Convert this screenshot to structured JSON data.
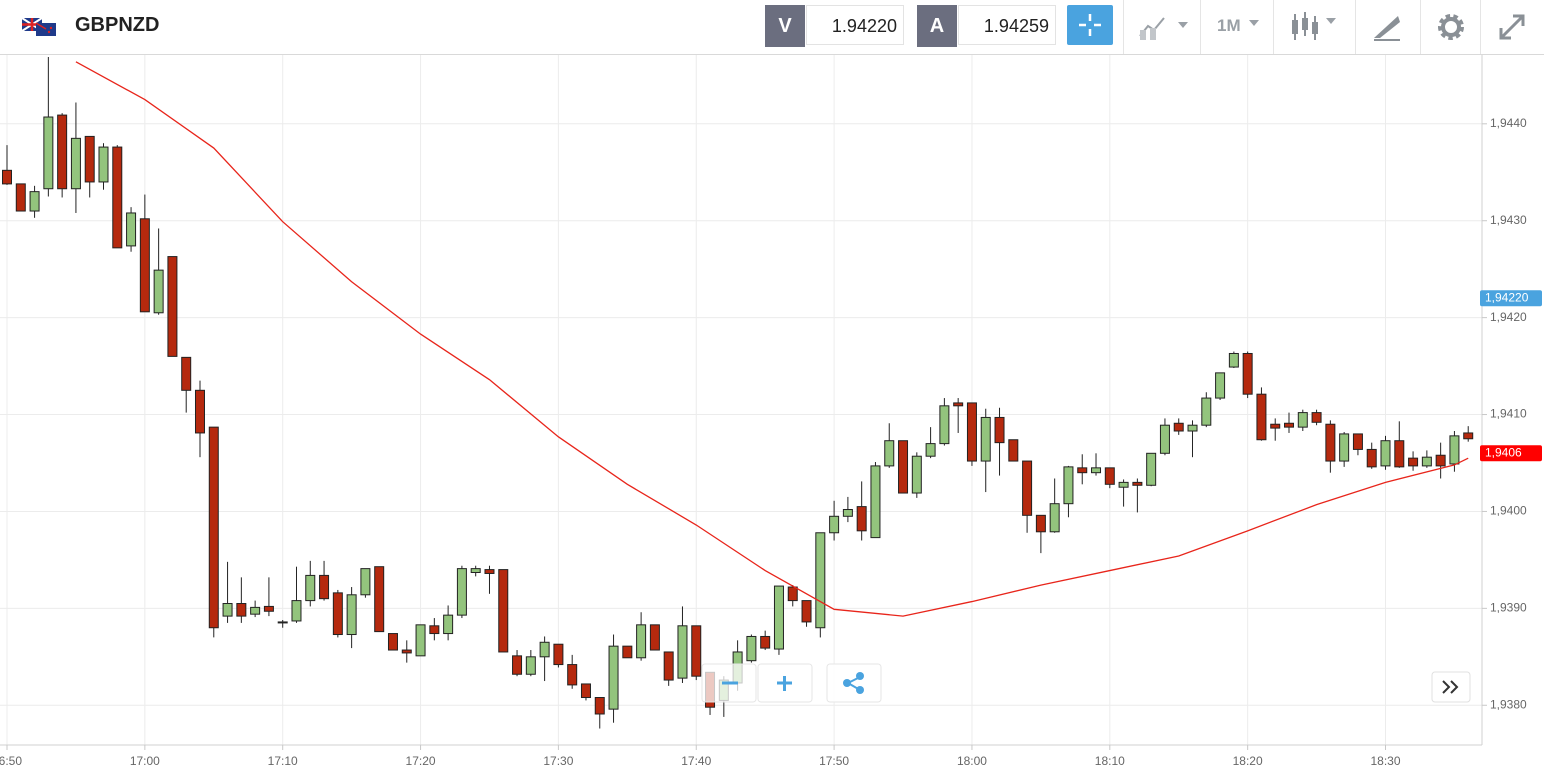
{
  "header": {
    "symbol": "GBPNZD",
    "bid_label": "V",
    "bid": "1.94220",
    "ask_label": "A",
    "ask": "1.94259",
    "timeframe": "1M"
  },
  "chart_data": {
    "type": "candlestick",
    "x": [
      "16:50",
      "16:51",
      "16:52",
      "16:53",
      "16:54",
      "16:55",
      "16:56",
      "16:57",
      "16:58",
      "16:59",
      "17:00",
      "17:01",
      "17:02",
      "17:03",
      "17:04",
      "17:05",
      "17:06",
      "17:07",
      "17:08",
      "17:09",
      "17:10",
      "17:11",
      "17:12",
      "17:13",
      "17:14",
      "17:15",
      "17:16",
      "17:17",
      "17:18",
      "17:19",
      "17:20",
      "17:21",
      "17:22",
      "17:23",
      "17:24",
      "17:25",
      "17:26",
      "17:27",
      "17:28",
      "17:29",
      "17:30",
      "17:31",
      "17:32",
      "17:33",
      "17:34",
      "17:35",
      "17:36",
      "17:37",
      "17:38",
      "17:39",
      "17:40",
      "17:41",
      "17:42",
      "17:43",
      "17:44",
      "17:45",
      "17:46",
      "17:47",
      "17:48",
      "17:49",
      "17:50",
      "17:51",
      "17:52",
      "17:53",
      "17:54",
      "17:55",
      "17:56",
      "17:57",
      "17:58",
      "17:59",
      "18:00",
      "18:01",
      "18:02",
      "18:03",
      "18:04",
      "18:05",
      "18:06",
      "18:07",
      "18:08",
      "18:09",
      "18:10",
      "18:11",
      "18:12",
      "18:13",
      "18:14",
      "18:15",
      "18:16",
      "18:17",
      "18:18",
      "18:19",
      "18:20",
      "18:21",
      "18:22",
      "18:23",
      "18:24",
      "18:25",
      "18:26",
      "18:27",
      "18:28",
      "18:29",
      "18:30",
      "18:31",
      "18:32",
      "18:33",
      "18:34",
      "18:35",
      "18:36"
    ],
    "open": [
      1.94352,
      1.94338,
      1.9431,
      1.94333,
      1.94409,
      1.94333,
      1.94387,
      1.9434,
      1.94376,
      1.94274,
      1.94302,
      1.94205,
      1.94263,
      1.94159,
      1.94125,
      1.94087,
      1.93892,
      1.93905,
      1.93894,
      1.93902,
      1.93886,
      1.93887,
      1.93908,
      1.93934,
      1.93916,
      1.93873,
      1.93914,
      1.93943,
      1.93874,
      1.93857,
      1.93851,
      1.93882,
      1.93874,
      1.93893,
      1.93937,
      1.9394,
      1.9394,
      1.93851,
      1.93832,
      1.9385,
      1.93863,
      1.93842,
      1.93822,
      1.93808,
      1.93796,
      1.93861,
      1.93849,
      1.93883,
      1.93855,
      1.93828,
      1.93882,
      1.93834,
      1.93805,
      1.93823,
      1.93846,
      1.93871,
      1.93858,
      1.93922,
      1.93908,
      1.9388,
      1.93978,
      1.93995,
      1.94005,
      1.93973,
      1.94047,
      1.94073,
      1.94019,
      1.94057,
      1.9407,
      1.94112,
      1.94112,
      1.94052,
      1.94097,
      1.94074,
      1.94052,
      1.93996,
      1.93979,
      1.94008,
      1.94045,
      1.9404,
      1.94045,
      1.94025,
      1.9403,
      1.94027,
      1.9406,
      1.94091,
      1.94083,
      1.94089,
      1.94117,
      1.94149,
      1.94163,
      1.94121,
      1.9409,
      1.94091,
      1.94087,
      1.94102,
      1.9409,
      1.94052,
      1.9408,
      1.94064,
      1.94047,
      1.94073,
      1.94055,
      1.94047,
      1.94058,
      1.94049,
      1.94081
    ],
    "high": [
      1.94378,
      1.94338,
      1.94336,
      1.94469,
      1.94411,
      1.94422,
      1.94387,
      1.9438,
      1.94378,
      1.94314,
      1.94327,
      1.94292,
      1.94263,
      1.94159,
      1.94135,
      1.94087,
      1.93948,
      1.93932,
      1.93908,
      1.93932,
      1.93888,
      1.93943,
      1.93949,
      1.93949,
      1.93919,
      1.93922,
      1.93941,
      1.93943,
      1.93874,
      1.93867,
      1.93883,
      1.9389,
      1.93903,
      1.93944,
      1.93944,
      1.93944,
      1.9394,
      1.93857,
      1.93857,
      1.93871,
      1.93863,
      1.93852,
      1.93822,
      1.93808,
      1.93873,
      1.93861,
      1.93896,
      1.93883,
      1.93855,
      1.93902,
      1.93882,
      1.93834,
      1.9383,
      1.93867,
      1.93873,
      1.93877,
      1.93923,
      1.93924,
      1.93908,
      1.93978,
      1.94011,
      1.94015,
      1.94031,
      1.94051,
      1.94091,
      1.94073,
      1.94061,
      1.94087,
      1.94117,
      1.94117,
      1.94112,
      1.94106,
      1.94107,
      1.94074,
      1.94052,
      1.93996,
      1.94034,
      1.94047,
      1.94059,
      1.9406,
      1.94045,
      1.94033,
      1.94034,
      1.9406,
      1.94096,
      1.94096,
      1.94094,
      1.94123,
      1.94143,
      1.94165,
      1.94165,
      1.94128,
      1.94096,
      1.94102,
      1.94105,
      1.94105,
      1.94094,
      1.94082,
      1.9408,
      1.94071,
      1.94078,
      1.94093,
      1.94062,
      1.94063,
      1.94071,
      1.94083,
      1.94088
    ],
    "low": [
      1.94337,
      1.9431,
      1.94303,
      1.94325,
      1.94324,
      1.94308,
      1.94324,
      1.94332,
      1.94272,
      1.94268,
      1.94206,
      1.94203,
      1.9416,
      1.94102,
      1.94056,
      1.9387,
      1.93885,
      1.93885,
      1.93891,
      1.93892,
      1.9388,
      1.93885,
      1.93902,
      1.93908,
      1.9387,
      1.93859,
      1.93911,
      1.93876,
      1.93857,
      1.93844,
      1.93851,
      1.93867,
      1.93867,
      1.9389,
      1.93933,
      1.93915,
      1.93855,
      1.9383,
      1.9383,
      1.93825,
      1.93839,
      1.93817,
      1.93805,
      1.93776,
      1.93782,
      1.93849,
      1.93846,
      1.93857,
      1.9382,
      1.93823,
      1.93826,
      1.9379,
      1.93788,
      1.93815,
      1.93844,
      1.93857,
      1.93852,
      1.93902,
      1.93881,
      1.9387,
      1.9397,
      1.93989,
      1.9397,
      1.93973,
      1.94045,
      1.94019,
      1.94014,
      1.94055,
      1.94068,
      1.94081,
      1.94047,
      1.9402,
      1.94037,
      1.94052,
      1.93978,
      1.93957,
      1.93978,
      1.93994,
      1.94028,
      1.94037,
      1.94024,
      1.94005,
      1.93999,
      1.94026,
      1.94058,
      1.94079,
      1.94056,
      1.94087,
      1.94115,
      1.94148,
      1.94117,
      1.94073,
      1.94073,
      1.94081,
      1.94083,
      1.94089,
      1.9404,
      1.94046,
      1.94058,
      1.94044,
      1.94043,
      1.94045,
      1.94042,
      1.94045,
      1.94034,
      1.94041,
      1.94072
    ],
    "close": [
      1.94338,
      1.9431,
      1.9433,
      1.94407,
      1.94333,
      1.94385,
      1.9434,
      1.94376,
      1.94272,
      1.94308,
      1.94206,
      1.94249,
      1.9416,
      1.94125,
      1.94081,
      1.9388,
      1.93905,
      1.93892,
      1.93901,
      1.93897,
      1.93886,
      1.93908,
      1.93934,
      1.9391,
      1.93873,
      1.93914,
      1.93941,
      1.93876,
      1.93857,
      1.93854,
      1.93883,
      1.93874,
      1.93893,
      1.93941,
      1.93941,
      1.93936,
      1.93855,
      1.93832,
      1.9385,
      1.93865,
      1.93842,
      1.93821,
      1.93808,
      1.93791,
      1.93861,
      1.93849,
      1.93883,
      1.93857,
      1.93826,
      1.93882,
      1.9383,
      1.93798,
      1.93826,
      1.93855,
      1.93871,
      1.93859,
      1.93923,
      1.93908,
      1.93886,
      1.93978,
      1.93995,
      1.94002,
      1.9398,
      1.94047,
      1.94073,
      1.94019,
      1.94057,
      1.9407,
      1.94109,
      1.94109,
      1.94052,
      1.94097,
      1.94071,
      1.94052,
      1.93996,
      1.93979,
      1.94008,
      1.94046,
      1.9404,
      1.94045,
      1.94028,
      1.9403,
      1.94027,
      1.9406,
      1.94089,
      1.94083,
      1.94089,
      1.94117,
      1.94143,
      1.94163,
      1.94121,
      1.94074,
      1.94086,
      1.94087,
      1.94102,
      1.94092,
      1.94052,
      1.9408,
      1.94064,
      1.94046,
      1.94073,
      1.94046,
      1.94047,
      1.94056,
      1.94047,
      1.94078,
      1.94075
    ],
    "up_color": "#93c47d",
    "down_color": "#b5290e",
    "moving_average": {
      "color": "#e8251b",
      "x": [
        "16:55",
        "17:00",
        "17:05",
        "17:10",
        "17:15",
        "17:20",
        "17:25",
        "17:30",
        "17:35",
        "17:40",
        "17:45",
        "17:50",
        "17:55",
        "18:00",
        "18:05",
        "18:10",
        "18:15",
        "18:20",
        "18:25",
        "18:30",
        "18:35",
        "18:36"
      ],
      "values": [
        1.94464,
        1.94425,
        1.94375,
        1.94299,
        1.94237,
        1.94183,
        1.94136,
        1.94077,
        1.94028,
        1.93986,
        1.93939,
        1.93899,
        1.93892,
        1.93907,
        1.93924,
        1.93939,
        1.93954,
        1.9398,
        1.94007,
        1.9403,
        1.94048,
        1.94055
      ]
    },
    "price_labels": [
      {
        "value": 1.9422,
        "label": "1,94220",
        "color": "#4aa3df"
      },
      {
        "value": 1.9406,
        "label": "1,9406",
        "color": "#ff0000"
      }
    ],
    "xlim": [
      "16:50",
      "18:37"
    ],
    "xticks": [
      "16:50",
      "17:00",
      "17:10",
      "17:20",
      "17:30",
      "17:40",
      "17:50",
      "18:00",
      "18:10",
      "18:20",
      "18:30"
    ],
    "ylim": [
      1.93759,
      1.94471
    ],
    "yticks": [
      {
        "value": 1.938,
        "label": "1,9380"
      },
      {
        "value": 1.939,
        "label": "1,9390"
      },
      {
        "value": 1.94,
        "label": "1,9400"
      },
      {
        "value": 1.941,
        "label": "1,9410"
      },
      {
        "value": 1.942,
        "label": "1,9420"
      },
      {
        "value": 1.943,
        "label": "1,9430"
      },
      {
        "value": 1.944,
        "label": "1,9440"
      }
    ],
    "grid": true
  }
}
